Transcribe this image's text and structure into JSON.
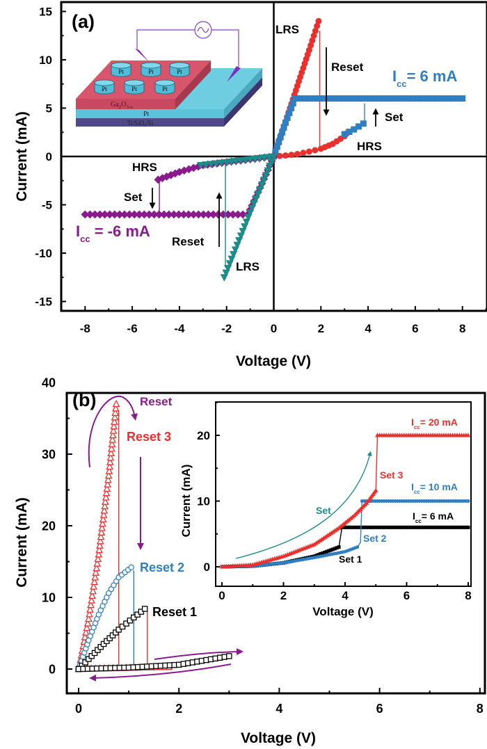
{
  "colors": {
    "red": "#e8312f",
    "blue": "#2f7fc1",
    "purple": "#8a1a8e",
    "teal": "#1b8c86",
    "black": "#000000"
  },
  "chart_data": [
    {
      "type": "scatter",
      "panel_label": "(a)",
      "xlabel": "Voltage (V)",
      "ylabel": "Current (mA)",
      "xlim": [
        -9,
        9
      ],
      "ylim": [
        -16,
        16
      ],
      "xticks": [
        -8,
        -6,
        -4,
        -2,
        0,
        2,
        4,
        6,
        8
      ],
      "yticks": [
        -15,
        -10,
        -5,
        0,
        5,
        10,
        15
      ],
      "grid": false,
      "series": [
        {
          "color": "#e8312f",
          "marker": "circle",
          "branches": [
            [
              [
                0,
                0
              ],
              [
                0.5,
                3.6
              ],
              [
                1,
                7.3
              ],
              [
                1.5,
                11
              ],
              [
                1.9,
                14
              ]
            ],
            [
              [
                0,
                0
              ],
              [
                0.5,
                0.1
              ],
              [
                1,
                0.25
              ],
              [
                1.5,
                0.5
              ],
              [
                2,
                0.8
              ],
              [
                2.5,
                1.3
              ],
              [
                3,
                2.1
              ],
              [
                3.1,
                2.4
              ]
            ]
          ],
          "jumps": [
            [
              [
                1.95,
                13
              ],
              [
                1.95,
                1
              ]
            ]
          ]
        },
        {
          "color": "#2f7fc1",
          "marker": "square",
          "branches": [
            [
              [
                3.0,
                2.3
              ],
              [
                3.4,
                2.8
              ],
              [
                3.8,
                3.4
              ]
            ],
            [
              [
                0.9,
                6
              ],
              [
                8,
                6
              ]
            ],
            [
              [
                0.9,
                6
              ],
              [
                0.5,
                3.5
              ],
              [
                0,
                0
              ]
            ]
          ],
          "jumps": [
            [
              [
                3.85,
                3.6
              ],
              [
                3.85,
                5.5
              ]
            ]
          ]
        },
        {
          "color": "#8a1a8e",
          "marker": "diamond",
          "branches": [
            [
              [
                0,
                0
              ],
              [
                -1,
                -0.3
              ],
              [
                -2,
                -0.6
              ],
              [
                -3,
                -0.9
              ],
              [
                -4,
                -1.6
              ],
              [
                -4.9,
                -2.4
              ]
            ],
            [
              [
                -8,
                -6
              ],
              [
                -1.1,
                -6
              ]
            ],
            [
              [
                -1.1,
                -6
              ],
              [
                -0.5,
                -2.8
              ],
              [
                0,
                0
              ]
            ]
          ],
          "jumps": [
            [
              [
                -4.85,
                -2.6
              ],
              [
                -4.85,
                -6
              ]
            ]
          ]
        },
        {
          "color": "#1b8c86",
          "marker": "tri-down",
          "branches": [
            [
              [
                0,
                0
              ],
              [
                -1,
                -5.8
              ],
              [
                -2.1,
                -12.5
              ]
            ],
            [
              [
                -3.1,
                -0.9
              ],
              [
                -2,
                -0.6
              ],
              [
                -1,
                -0.3
              ],
              [
                0,
                0
              ]
            ]
          ],
          "jumps": [
            [
              [
                -2.05,
                -11.5
              ],
              [
                -2.05,
                -0.9
              ]
            ]
          ]
        }
      ],
      "annotations": {
        "lrs_top": "LRS",
        "reset_pos": "Reset",
        "set_pos": "Set",
        "hrs_pos": "HRS",
        "icc_pos": {
          "main": "I",
          "sub": "cc",
          "rest": "= 6 mA"
        },
        "hrs_neg": "HRS",
        "set_neg": "Set",
        "reset_neg": "Reset",
        "lrs_bottom": "LRS",
        "icc_neg": {
          "main": "I",
          "sub": "cc",
          "rest": " = -6 mA"
        }
      },
      "device_schematic": {
        "electrodes": [
          "Pt",
          "Pt",
          "Pt",
          "Pt",
          "Pt",
          "Pt"
        ],
        "top_layer": {
          "main": "Ga",
          "s1": "2",
          "mid": "O",
          "s2": "3-x"
        },
        "bottom_electrode": "Pt",
        "substrate": {
          "a": "Ti/SiO",
          "s": "2",
          "b": "/Si"
        }
      }
    },
    {
      "type": "scatter",
      "panel_label": "(b)",
      "xlabel": "Voltage (V)",
      "ylabel": "Current (mA)",
      "xlim": [
        -0.24,
        8.1
      ],
      "ylim": [
        -3.4,
        38.5
      ],
      "xticks": [
        0,
        2,
        4,
        6,
        8
      ],
      "yticks": [
        0,
        10,
        20,
        30,
        40
      ],
      "grid": false,
      "series": [
        {
          "color": "#e8312f",
          "marker": "tri-up-open",
          "branches": [
            [
              [
                0,
                0
              ],
              [
                0.2,
                7
              ],
              [
                0.4,
                16
              ],
              [
                0.6,
                27
              ],
              [
                0.75,
                37
              ]
            ],
            [
              [
                0,
                0
              ],
              [
                0.6,
                0.1
              ],
              [
                1.2,
                0.2
              ],
              [
                1.8,
                0.3
              ]
            ]
          ],
          "jumps": [
            [
              [
                0.8,
                36
              ],
              [
                0.8,
                0
              ]
            ]
          ]
        },
        {
          "color": "#2f7fc1",
          "marker": "circle-open",
          "branches": [
            [
              [
                0,
                0
              ],
              [
                0.2,
                4
              ],
              [
                0.4,
                7.6
              ],
              [
                0.6,
                10.6
              ],
              [
                0.8,
                12.8
              ],
              [
                1.05,
                14.2
              ]
            ]
          ],
          "jumps": [
            [
              [
                1.1,
                13.8
              ],
              [
                1.1,
                0.2
              ]
            ]
          ]
        },
        {
          "color": "#000000",
          "marker": "square-open",
          "branches": [
            [
              [
                0,
                0
              ],
              [
                0.2,
                1.4
              ],
              [
                0.5,
                3.5
              ],
              [
                0.8,
                5.5
              ],
              [
                1.1,
                7.2
              ],
              [
                1.32,
                8.4
              ]
            ],
            [
              [
                0,
                0
              ],
              [
                1,
                0.2
              ],
              [
                2,
                0.6
              ],
              [
                3,
                1.8
              ]
            ]
          ],
          "jumps": [
            [
              [
                1.37,
                8.2
              ],
              [
                1.37,
                0.3
              ]
            ]
          ],
          "jump_color": "#e8312f"
        }
      ],
      "annotations": {
        "reset": "Reset",
        "reset3": "Reset 3",
        "reset2": "Reset 2",
        "reset1": "Reset 1"
      },
      "inset": {
        "type": "line",
        "xlabel": "Voltage (V)",
        "ylabel": "Current (mA)",
        "xlim": [
          -0.2,
          8.1
        ],
        "ylim": [
          -3,
          25
        ],
        "xticks": [
          0,
          2,
          4,
          6,
          8
        ],
        "yticks": [
          0,
          10,
          20
        ],
        "series": [
          {
            "color": "#000000",
            "marker": "square-small",
            "branches": [
              [
                [
                  0,
                  0
                ],
                [
                  1,
                  0.1
                ],
                [
                  2,
                  0.6
                ],
                [
                  3,
                  1.6
                ],
                [
                  3.8,
                  3
                ]
              ],
              [
                [
                  3.9,
                  6
                ],
                [
                  8,
                  6
                ]
              ]
            ],
            "jumps": [
              [
                [
                  3.8,
                  3
                ],
                [
                  3.9,
                  6
                ]
              ]
            ]
          },
          {
            "color": "#2f7fc1",
            "marker": "circle-small",
            "branches": [
              [
                [
                  0,
                  0
                ],
                [
                  1,
                  0.1
                ],
                [
                  2,
                  0.6
                ],
                [
                  3,
                  1.4
                ],
                [
                  4,
                  2.3
                ],
                [
                  4.4,
                  3
                ]
              ],
              [
                [
                  4.55,
                  10
                ],
                [
                  8,
                  10
                ]
              ]
            ],
            "jumps": [
              [
                [
                  4.4,
                  3
                ],
                [
                  4.5,
                  3.7
                ],
                [
                  4.55,
                  10
                ]
              ]
            ]
          },
          {
            "color": "#e8312f",
            "marker": "tri-small",
            "branches": [
              [
                [
                  0,
                  0
                ],
                [
                  1,
                  0.3
                ],
                [
                  2,
                  1.6
                ],
                [
                  3,
                  3.4
                ],
                [
                  3.8,
                  5.9
                ],
                [
                  4.3,
                  7.8
                ],
                [
                  4.7,
                  9.7
                ],
                [
                  5,
                  11.6
                ]
              ],
              [
                [
                  5.05,
                  20
                ],
                [
                  8,
                  20
                ]
              ]
            ],
            "jumps": [
              [
                [
                  5,
                  11.6
                ],
                [
                  5.05,
                  20
                ]
              ]
            ]
          }
        ],
        "annotations": {
          "icc20": {
            "main": "I",
            "sub": "cc",
            "rest": "= 20 mA"
          },
          "set3": "Set 3",
          "icc10": {
            "main": "I",
            "sub": "cc",
            "rest": "= 10 mA"
          },
          "icc6": {
            "main": "I",
            "sub": "cc",
            "rest": "= 6 mA"
          },
          "set2": "Set 2",
          "set1": "Set 1",
          "set": "Set"
        }
      }
    }
  ]
}
